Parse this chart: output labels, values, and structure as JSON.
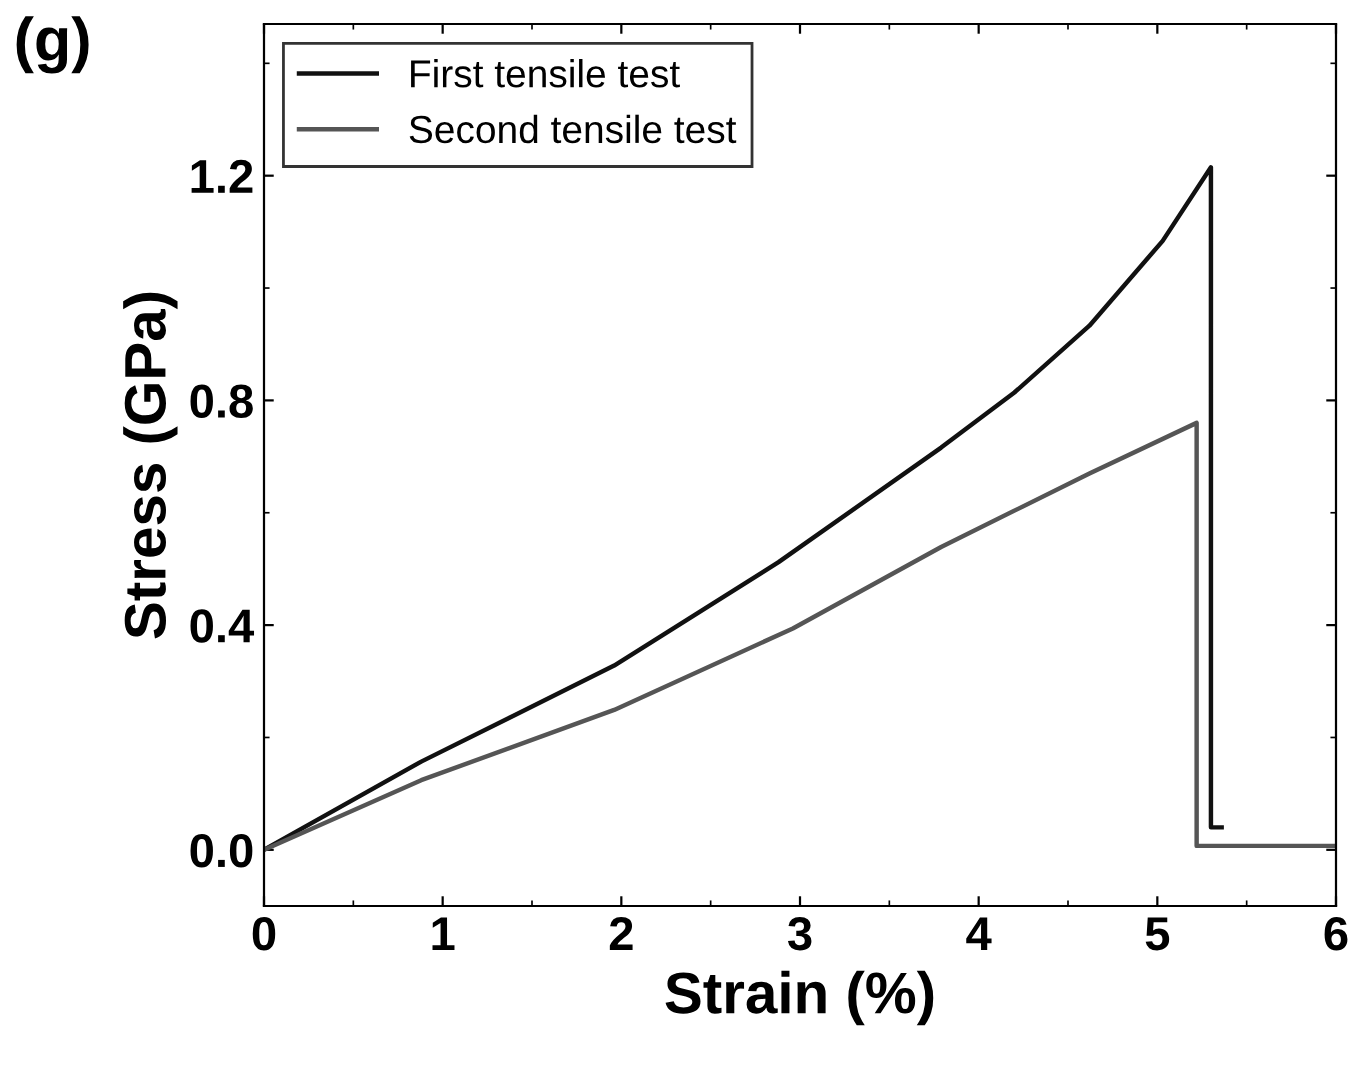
{
  "chart_data": {
    "type": "line",
    "xlabel": "Strain (%)",
    "ylabel": "Stress (GPa)",
    "annotations": [
      "(g)"
    ],
    "series": [
      {
        "name": "First tensile test",
        "color": "#111111",
        "x": [
          0,
          0.88,
          1.96,
          2.88,
          3.79,
          4.2,
          4.62,
          5.03,
          5.3,
          5.3,
          5.36
        ],
        "values": [
          0,
          0.157,
          0.328,
          0.512,
          0.716,
          0.814,
          0.933,
          1.084,
          1.215,
          0.04,
          0.04
        ]
      },
      {
        "name": "Second tensile test",
        "color": "#555555",
        "x": [
          0,
          0.88,
          1.96,
          2.96,
          3.79,
          4.62,
          5.22,
          5.22,
          6
        ],
        "values": [
          0,
          0.124,
          0.249,
          0.394,
          0.539,
          0.67,
          0.76,
          0.007,
          0.007
        ]
      }
    ],
    "xlim": [
      0,
      6
    ],
    "xticks": [
      0,
      1,
      2,
      3,
      4,
      5,
      6
    ],
    "ylim": [
      -0.1,
      1.47
    ],
    "yticks": [
      {
        "value": 0,
        "label": "0.0"
      },
      0.4,
      0.8,
      1.2
    ],
    "legend": "top left",
    "line_style": "solid",
    "marker": "none"
  }
}
